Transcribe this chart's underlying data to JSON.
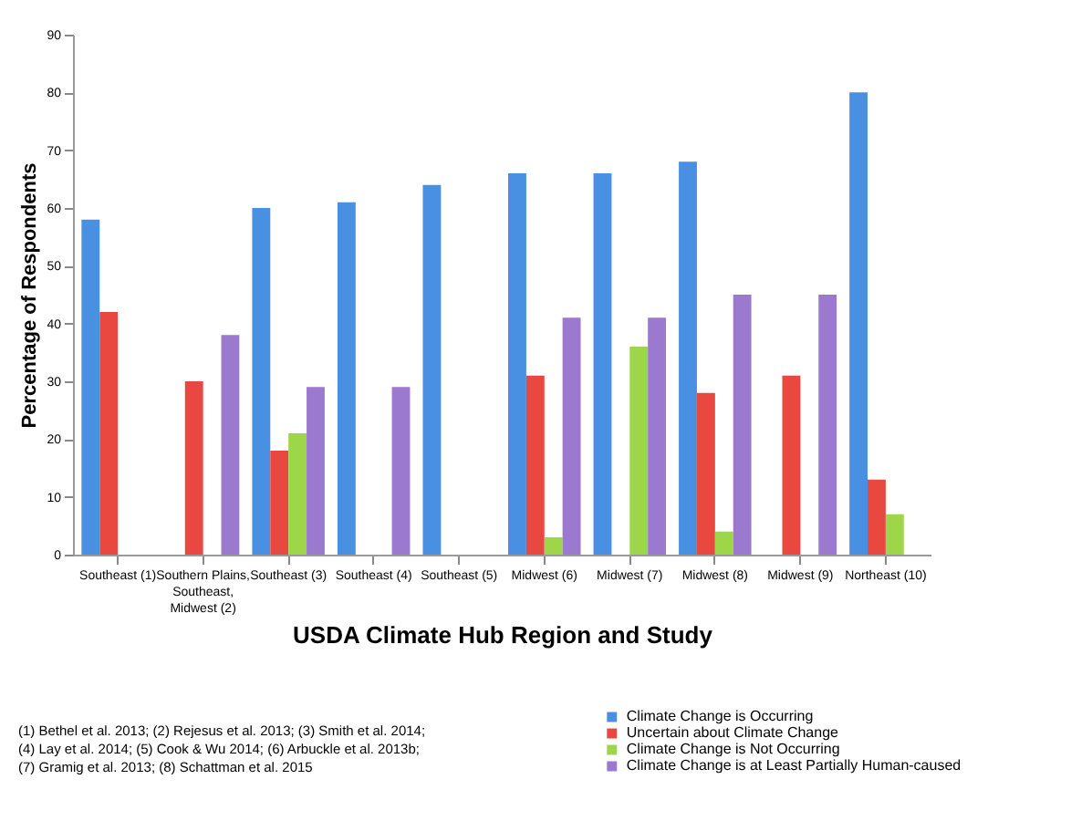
{
  "chart_data": {
    "type": "bar",
    "xlabel": "USDA Climate Hub Region and Study",
    "ylabel": "Percentage of Respondents",
    "categories": [
      "Southeast (1)",
      "Southern Plains, Southeast, Midwest (2)",
      "Southeast (3)",
      "Southeast (4)",
      "Southeast (5)",
      "Midwest (6)",
      "Midwest (7)",
      "Midwest (8)",
      "Midwest (9)",
      "Northeast (10)"
    ],
    "series": [
      {
        "name": "Climate Change is Occurring",
        "color": "#4a90e2",
        "values": [
          58,
          null,
          60,
          61,
          64,
          66,
          66,
          68,
          null,
          80
        ]
      },
      {
        "name": "Uncertain about Climate Change",
        "color": "#e8483f",
        "values": [
          42,
          30,
          18,
          null,
          null,
          31,
          null,
          28,
          31,
          13
        ]
      },
      {
        "name": "Climate Change is Not Occurring",
        "color": "#9ed64a",
        "values": [
          null,
          null,
          21,
          null,
          null,
          3,
          36,
          4,
          null,
          7
        ]
      },
      {
        "name": "Climate Change is at Least Partially Human-caused",
        "color": "#9b79cf",
        "values": [
          null,
          38,
          29,
          29,
          null,
          41,
          41,
          45,
          45,
          null
        ]
      }
    ],
    "ylim": [
      0,
      90
    ],
    "yticks": [
      0,
      10,
      20,
      30,
      40,
      50,
      60,
      70,
      80,
      90
    ],
    "grid": false,
    "legend": "bottom right",
    "annotations": [
      "(1) Bethel et al. 2013; (2) Rejesus et al. 2013; (3) Smith et al. 2014;",
      "(4) Lay et al. 2014; (5) Cook & Wu 2014; (6) Arbuckle et al. 2013b;",
      "(7) Gramig et al. 2013; (8) Schattman et al. 2015"
    ]
  }
}
